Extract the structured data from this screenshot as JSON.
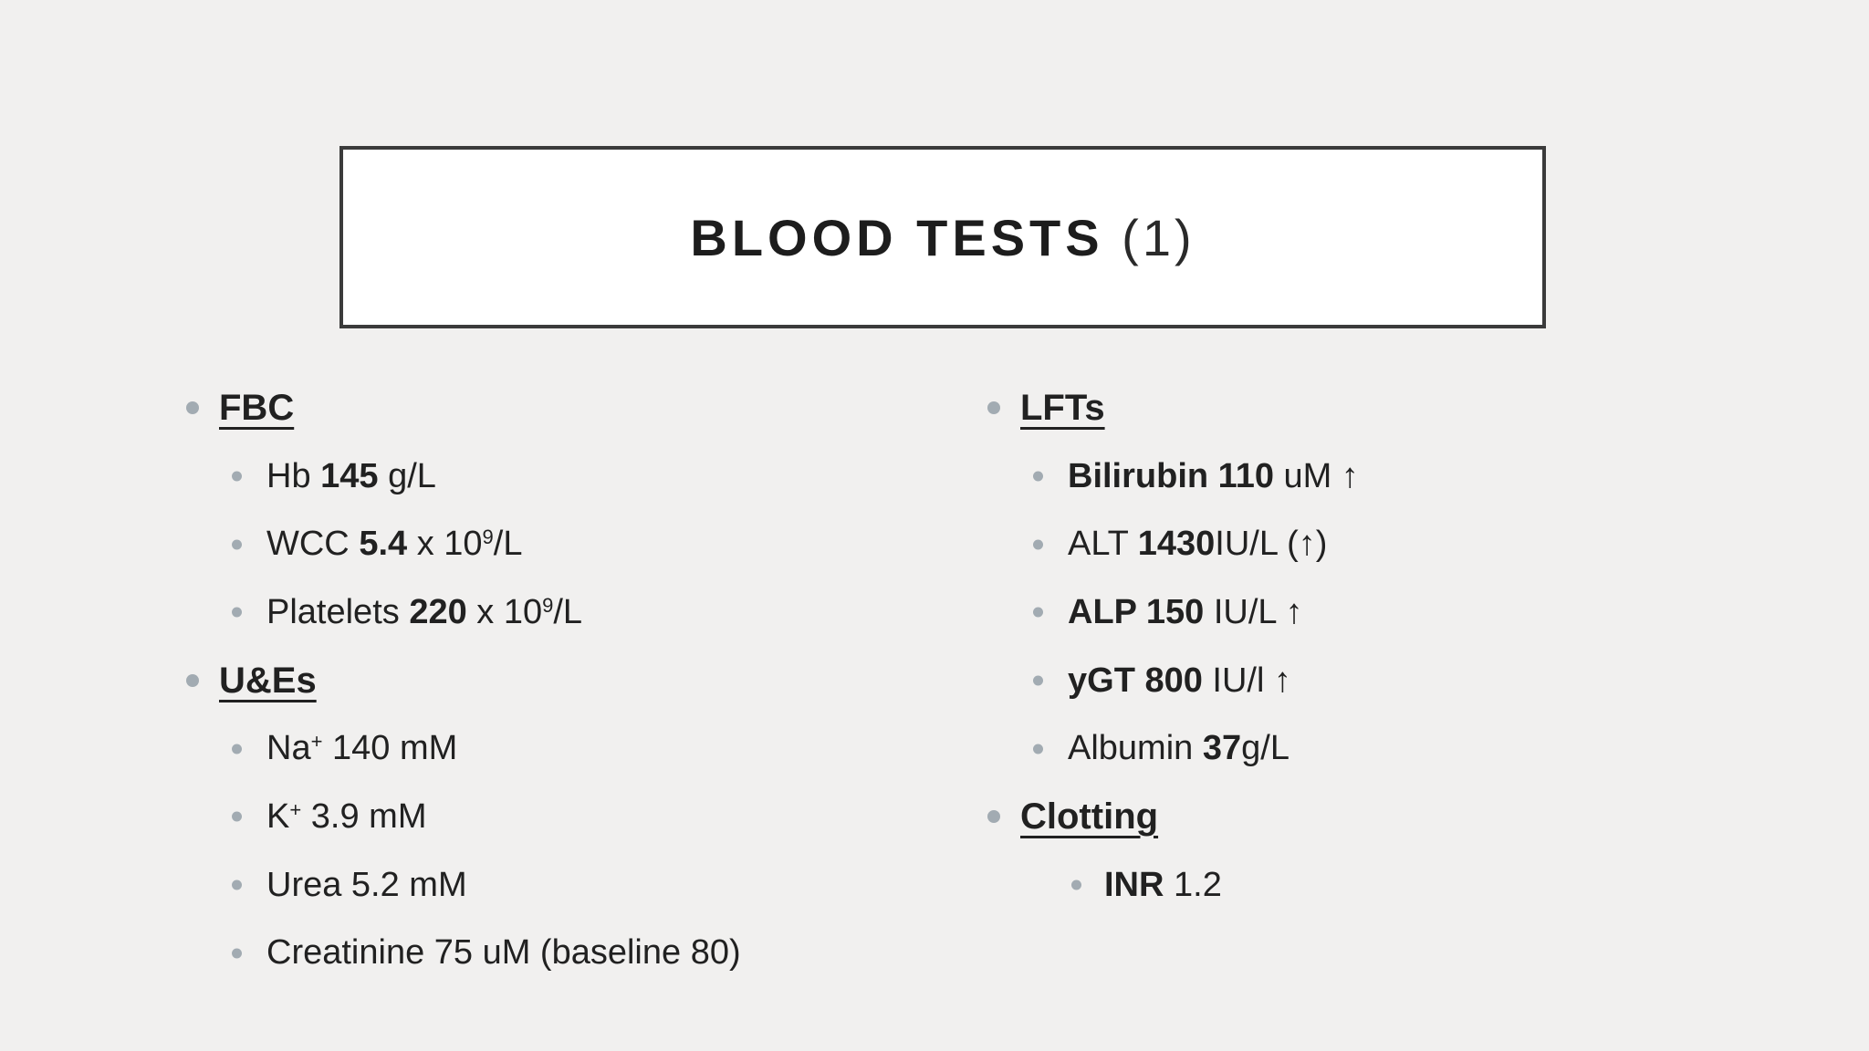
{
  "title": {
    "main": "BLOOD TESTS",
    "suffix": " (1)"
  },
  "theme": {
    "background": "#f1f0ef",
    "box_fill": "#ffffff",
    "box_border": "#3b3b3b",
    "text": "#212121",
    "bullet": "#a2abb2"
  },
  "columns": [
    {
      "id": "left",
      "items": [
        {
          "level": 1,
          "header": true,
          "segments": [
            {
              "t": "FBC",
              "b": true,
              "u": true
            }
          ]
        },
        {
          "level": 2,
          "segments": [
            {
              "t": "Hb "
            },
            {
              "t": "145",
              "b": true
            },
            {
              "t": " g/L"
            }
          ]
        },
        {
          "level": 2,
          "segments": [
            {
              "t": "WCC "
            },
            {
              "t": "5.4",
              "b": true
            },
            {
              "t": " x 10"
            },
            {
              "t": "9",
              "sup": true
            },
            {
              "t": "/L"
            }
          ]
        },
        {
          "level": 2,
          "segments": [
            {
              "t": "Platelets "
            },
            {
              "t": "220",
              "b": true
            },
            {
              "t": " x 10"
            },
            {
              "t": "9",
              "sup": true
            },
            {
              "t": "/L"
            }
          ]
        },
        {
          "level": 1,
          "header": true,
          "segments": [
            {
              "t": "U&Es",
              "b": true,
              "u": true
            }
          ]
        },
        {
          "level": 2,
          "segments": [
            {
              "t": "Na"
            },
            {
              "t": "+",
              "sup": true
            },
            {
              "t": " 140 mM"
            }
          ]
        },
        {
          "level": 2,
          "segments": [
            {
              "t": "K"
            },
            {
              "t": "+",
              "sup": true
            },
            {
              "t": " 3.9 mM"
            }
          ]
        },
        {
          "level": 2,
          "segments": [
            {
              "t": "Urea 5.2 mM"
            }
          ]
        },
        {
          "level": 2,
          "segments": [
            {
              "t": "Creatinine 75 uM (baseline 80)"
            }
          ]
        }
      ]
    },
    {
      "id": "right",
      "items": [
        {
          "level": 1,
          "header": true,
          "segments": [
            {
              "t": "LFTs",
              "b": true,
              "u": true
            }
          ]
        },
        {
          "level": 2,
          "segments": [
            {
              "t": "Bilirubin 110",
              "b": true
            },
            {
              "t": " uM ↑"
            }
          ]
        },
        {
          "level": 2,
          "segments": [
            {
              "t": "ALT "
            },
            {
              "t": "1430",
              "b": true
            },
            {
              "t": "IU/L (↑)"
            }
          ]
        },
        {
          "level": 2,
          "segments": [
            {
              "t": "ALP 150",
              "b": true
            },
            {
              "t": " IU/L ↑"
            }
          ]
        },
        {
          "level": 2,
          "segments": [
            {
              "t": "yGT 800",
              "b": true
            },
            {
              "t": " IU/l ↑"
            }
          ]
        },
        {
          "level": 2,
          "segments": [
            {
              "t": "Albumin "
            },
            {
              "t": "37",
              "b": true
            },
            {
              "t": "g/L"
            }
          ]
        },
        {
          "level": 1,
          "header": true,
          "segments": [
            {
              "t": "Clotting",
              "b": true,
              "u": true
            }
          ]
        },
        {
          "level": 3,
          "segments": [
            {
              "t": "INR",
              "b": true
            },
            {
              "t": " 1.2"
            }
          ]
        }
      ]
    }
  ]
}
